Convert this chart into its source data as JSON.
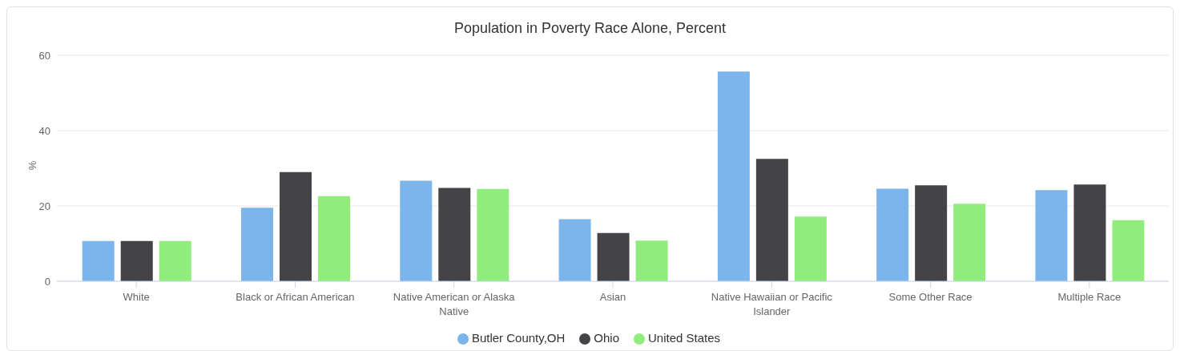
{
  "chart_data": {
    "type": "bar",
    "title": "Population in Poverty Race Alone, Percent",
    "ylabel": "%",
    "categories": [
      "White",
      "Black or African American",
      "Native American or Alaska Native",
      "Asian",
      "Native Hawaiian or Pacific Islander",
      "Some Other Race",
      "Multiple Race"
    ],
    "series": [
      {
        "name": "Butler County,OH",
        "color": "#7cb5ec",
        "values": [
          10.7,
          19.5,
          26.7,
          16.5,
          55.7,
          24.6,
          24.2
        ]
      },
      {
        "name": "Ohio",
        "color": "#434348",
        "values": [
          10.7,
          29.0,
          24.8,
          12.8,
          32.5,
          25.5,
          25.7
        ]
      },
      {
        "name": "United States",
        "color": "#90ed7d",
        "values": [
          10.7,
          22.6,
          24.5,
          10.8,
          17.2,
          20.6,
          16.2
        ]
      }
    ],
    "ylim": [
      0,
      60
    ],
    "yticks": [
      0,
      20,
      40,
      60
    ],
    "grid": "y",
    "legend": "bottom"
  }
}
